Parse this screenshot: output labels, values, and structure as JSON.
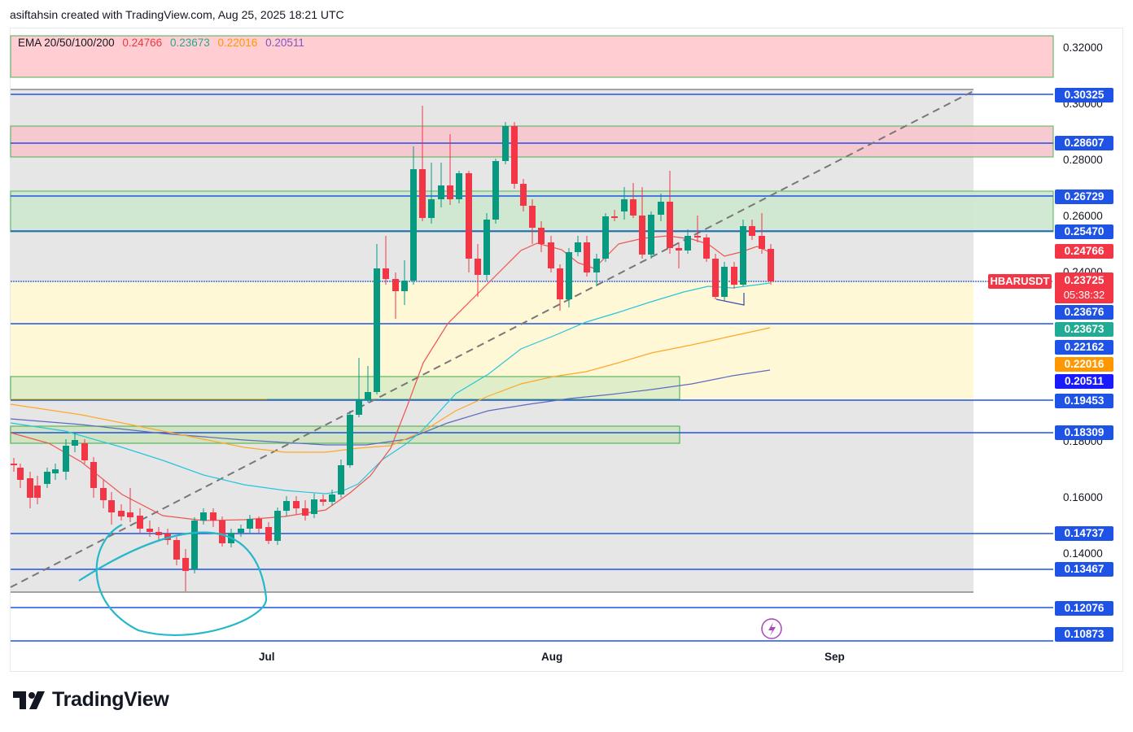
{
  "header": {
    "attribution": "asiftahsin created with TradingView.com, Aug 25, 2025 18:21 UTC"
  },
  "legend": {
    "title": "EMA 20/50/100/200",
    "values": [
      "0.24766",
      "0.23673",
      "0.22016",
      "0.20511"
    ],
    "colors": [
      "#f23645",
      "#22ab94",
      "#ff9800",
      "#7e57c2"
    ]
  },
  "symbol": {
    "name": "HBARUSDT",
    "last_price": "0.23725",
    "countdown": "05:38:32"
  },
  "price_axis": {
    "ticks": [
      "0.32000",
      "0.30000",
      "0.28000",
      "0.26000",
      "0.24000",
      "0.18000",
      "0.16000",
      "0.14000"
    ]
  },
  "level_labels": [
    "0.30325",
    "0.28607",
    "0.26729",
    "0.25470",
    "0.24766",
    "0.23676",
    "0.23673",
    "0.22162",
    "0.22016",
    "0.20511",
    "0.19453",
    "0.18309",
    "0.14737",
    "0.13467",
    "0.12076",
    "0.10873"
  ],
  "level_colors": [
    "#1e53e5",
    "#1e53e5",
    "#1e53e5",
    "#1e53e5",
    "#f23645",
    "#1e53e5",
    "#22ab94",
    "#1e53e5",
    "#ff9800",
    "#1a1aff",
    "#1e53e5",
    "#1e53e5",
    "#1e53e5",
    "#1e53e5",
    "#1e53e5",
    "#1e53e5"
  ],
  "time_axis": {
    "labels": [
      "Jul",
      "Aug",
      "Sep"
    ]
  },
  "brand": {
    "name": "TradingView"
  },
  "colors": {
    "up": "#089981",
    "down": "#f23645",
    "level_line": "#1e53e5",
    "symbol_badge": "#f23645",
    "resistance_zone": "#ffcdd2",
    "support_zone": "#c8e6c9",
    "range_box": "#e0e0e0",
    "demand_zone": "#fff9c4"
  }
}
